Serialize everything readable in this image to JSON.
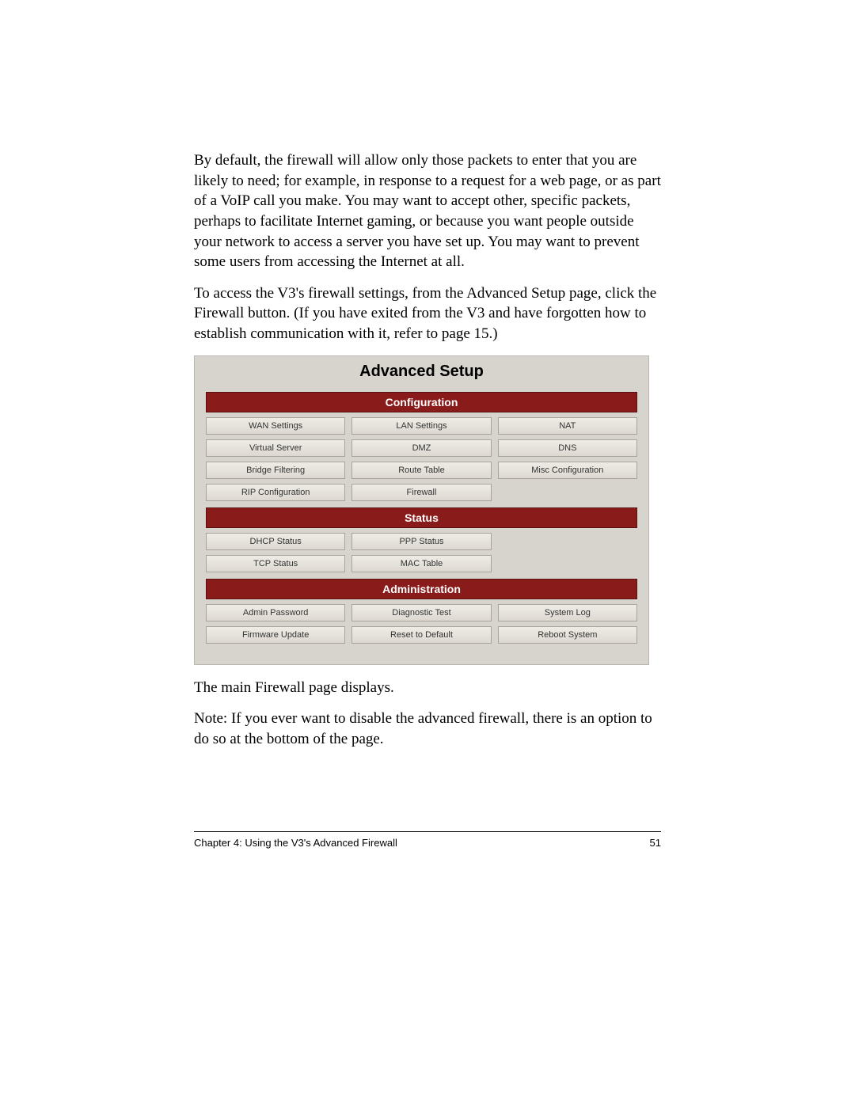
{
  "body": {
    "para1": "By default, the firewall will allow only those packets to enter that you are likely to need; for example, in response to a request for a web page, or as part of a VoIP call you make. You may want to accept other, specific packets, perhaps to facilitate Internet gaming, or because you want people outside your network to access a server you have set up. You may want to prevent some users from accessing the Internet at all.",
    "para2": "To access the V3's firewall settings, from the Advanced Setup page, click the Firewall button. (If you have exited from the V3 and have forgotten how to establish communication with it, refer to page 15.)",
    "para3": "The main Firewall page displays.",
    "note_label": "Note:",
    "note_text": " If you ever want to disable the advanced firewall, there is an option to do so at the bottom of the page."
  },
  "panel": {
    "title": "Advanced Setup",
    "background": "#d7d4cd",
    "header_bg": "#8a1b1b",
    "header_fg": "#ffffff",
    "sections": {
      "configuration": {
        "title": "Configuration",
        "rows": [
          [
            "WAN Settings",
            "LAN Settings",
            "NAT"
          ],
          [
            "Virtual Server",
            "DMZ",
            "DNS"
          ],
          [
            "Bridge Filtering",
            "Route Table",
            "Misc Configuration"
          ],
          [
            "RIP Configuration",
            "Firewall",
            ""
          ]
        ]
      },
      "status": {
        "title": "Status",
        "rows": [
          [
            "DHCP Status",
            "PPP Status",
            ""
          ],
          [
            "TCP Status",
            "MAC Table",
            ""
          ]
        ]
      },
      "administration": {
        "title": "Administration",
        "rows": [
          [
            "Admin Password",
            "Diagnostic Test",
            "System Log"
          ],
          [
            "Firmware Update",
            "Reset to Default",
            "Reboot System"
          ]
        ]
      }
    }
  },
  "footer": {
    "chapter": "Chapter 4: Using the V3's Advanced Firewall",
    "page": "51"
  }
}
